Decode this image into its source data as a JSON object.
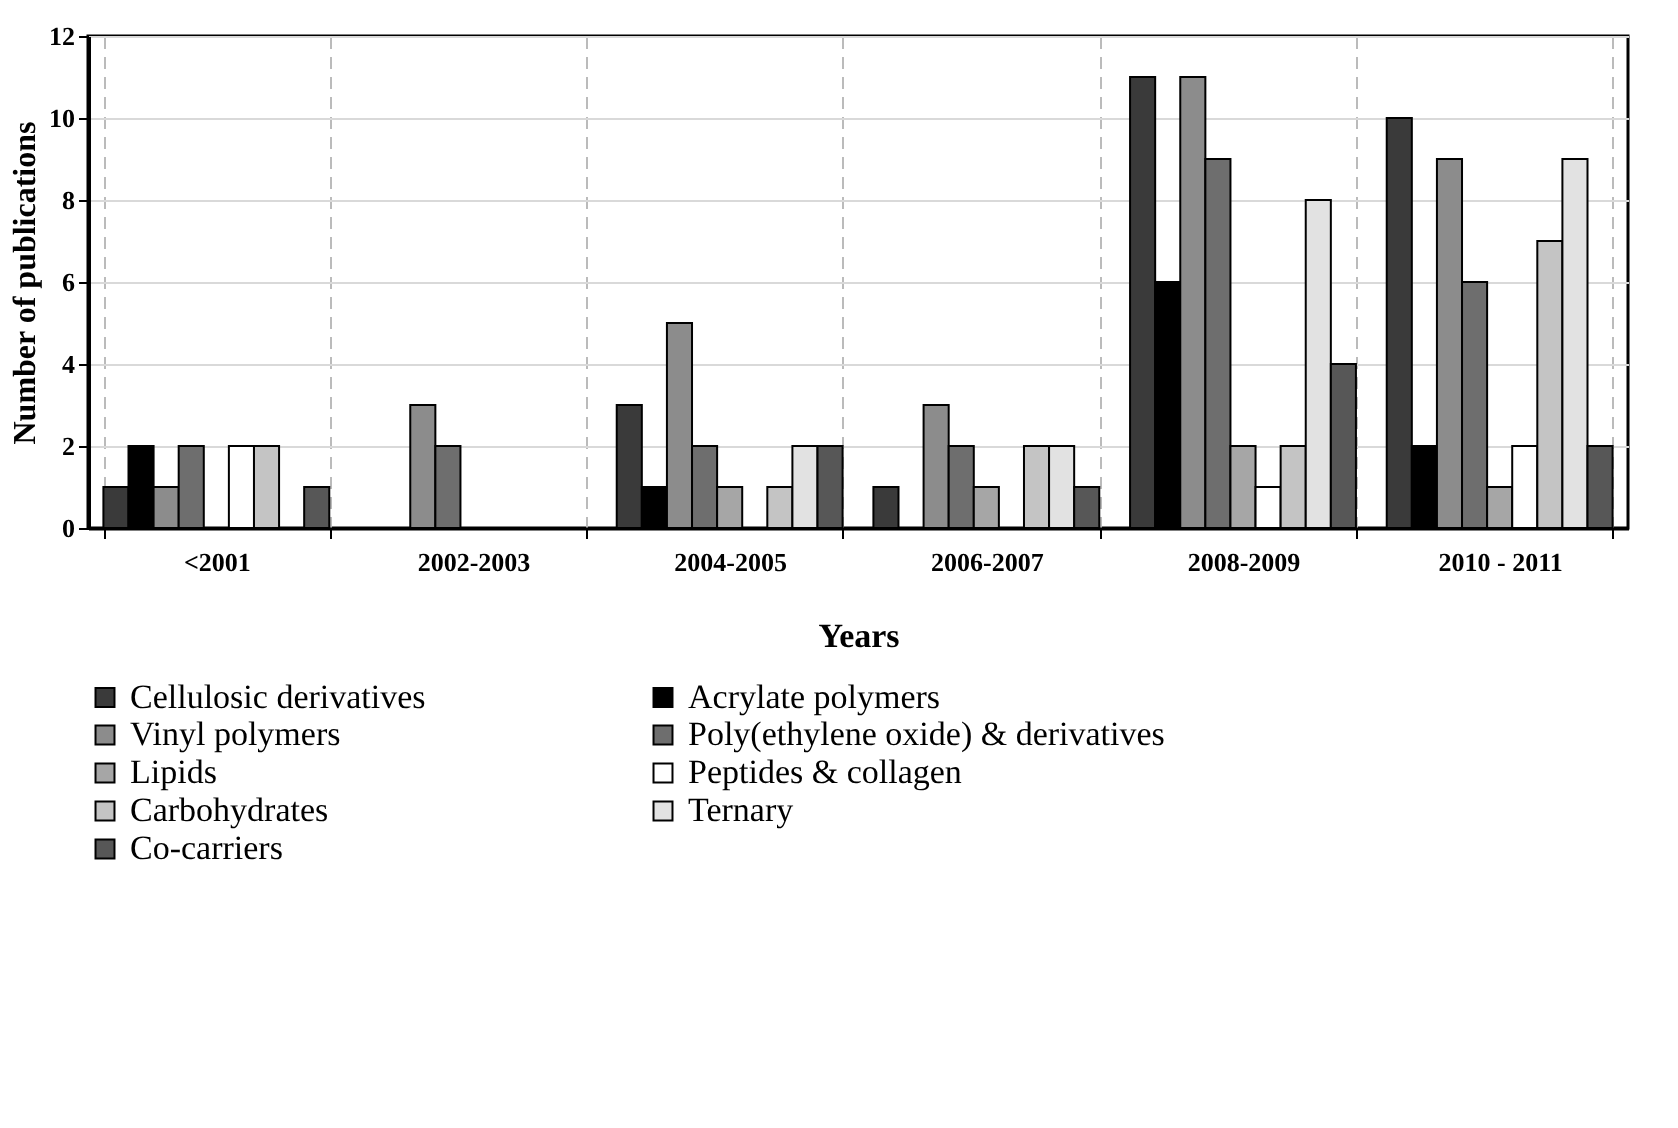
{
  "chart_data": {
    "type": "bar",
    "xlabel": "Years",
    "ylabel": "Number of publications",
    "categories": [
      "<2001",
      "2002-2003",
      "2004-2005",
      "2006-2007",
      "2008-2009",
      "2010 - 2011"
    ],
    "series": [
      {
        "name": "Cellulosic derivatives",
        "color": "#3a3a3a",
        "values": [
          1,
          0,
          3,
          1,
          11,
          10
        ]
      },
      {
        "name": "Acrylate polymers",
        "color": "#000000",
        "values": [
          2,
          0,
          1,
          0,
          6,
          2
        ]
      },
      {
        "name": "Vinyl polymers",
        "color": "#8c8c8c",
        "values": [
          1,
          3,
          5,
          3,
          11,
          9
        ]
      },
      {
        "name": "Poly(ethylene oxide) & derivatives",
        "color": "#6e6e6e",
        "values": [
          2,
          2,
          2,
          2,
          9,
          6
        ]
      },
      {
        "name": "Lipids",
        "color": "#a6a6a6",
        "values": [
          0,
          0,
          1,
          1,
          2,
          1
        ]
      },
      {
        "name": "Peptides & collagen",
        "color": "#ffffff",
        "values": [
          2,
          0,
          0,
          0,
          1,
          2
        ]
      },
      {
        "name": "Carbohydrates",
        "color": "#c4c4c4",
        "values": [
          2,
          0,
          1,
          2,
          2,
          7
        ]
      },
      {
        "name": "Ternary",
        "color": "#e2e2e2",
        "values": [
          0,
          0,
          2,
          2,
          8,
          9
        ]
      },
      {
        "name": "Co-carriers",
        "color": "#575757",
        "values": [
          1,
          0,
          2,
          1,
          4,
          2
        ]
      }
    ],
    "ylim": [
      0,
      12
    ],
    "yticks": [
      0,
      2,
      4,
      6,
      8,
      10,
      12
    ],
    "grid": "y",
    "legend": "bottom"
  }
}
